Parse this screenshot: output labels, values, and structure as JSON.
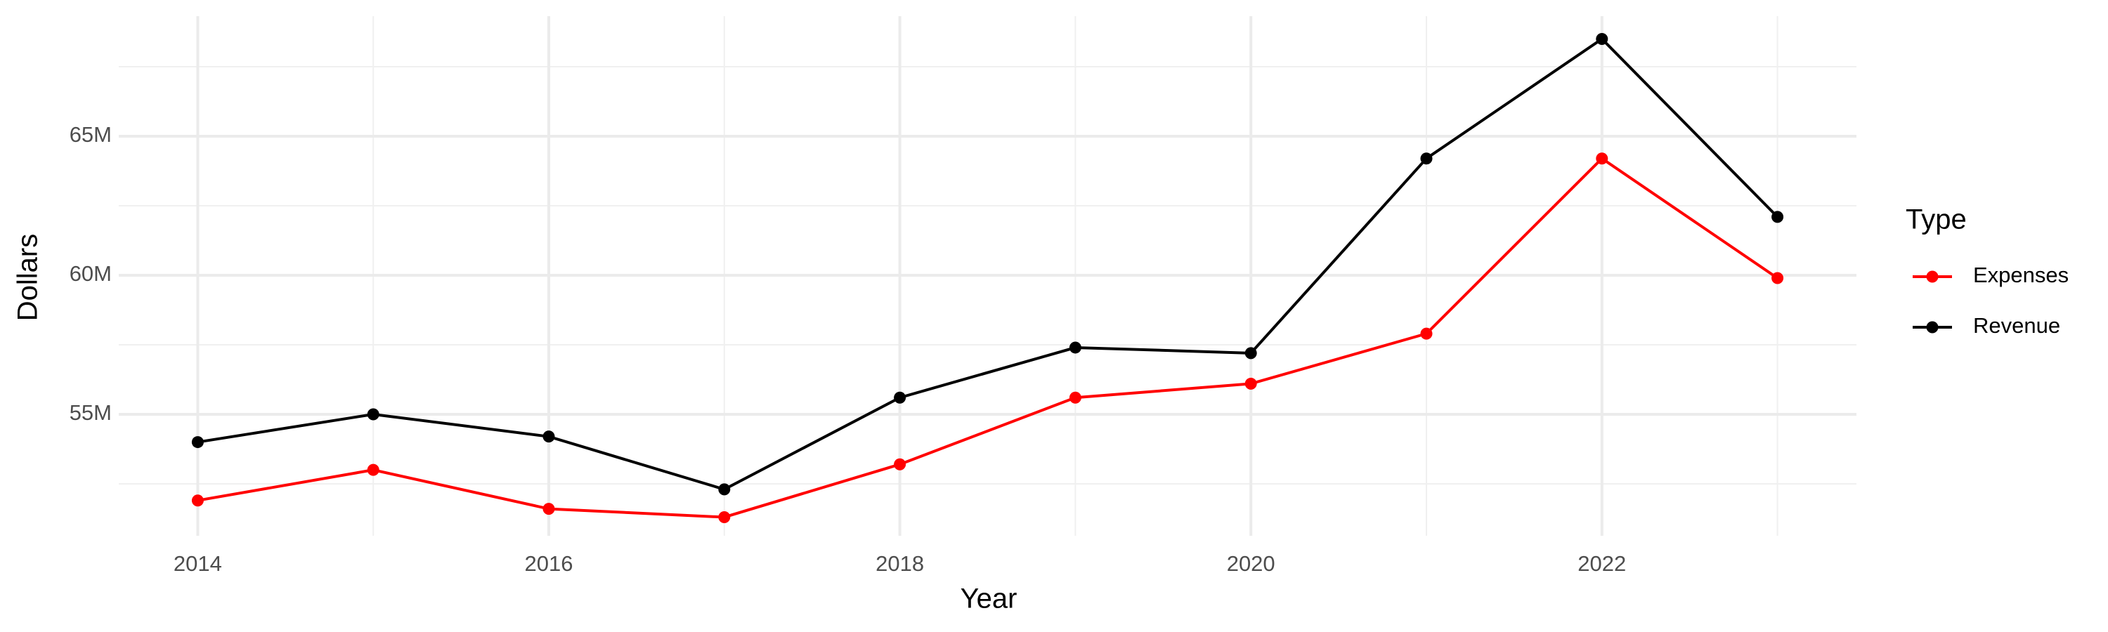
{
  "chart_data": {
    "type": "line",
    "x_label": "Year",
    "y_label": "Dollars",
    "legend_title": "Type",
    "x": [
      2014,
      2015,
      2016,
      2017,
      2018,
      2019,
      2020,
      2021,
      2022,
      2023
    ],
    "series": [
      {
        "name": "Expenses",
        "color": "#ff0000",
        "values": [
          51900000,
          53000000,
          51600000,
          51300000,
          53200000,
          55600000,
          56100000,
          57900000,
          64200000,
          59900000
        ]
      },
      {
        "name": "Revenue",
        "color": "#000000",
        "values": [
          54000000,
          55000000,
          54200000,
          52300000,
          55600000,
          57400000,
          57200000,
          64200000,
          68500000,
          62100000
        ]
      }
    ],
    "xlim": [
      2013.55,
      2023.45
    ],
    "xticks": [
      2014,
      2016,
      2018,
      2020,
      2022
    ],
    "xminor": [
      2015,
      2017,
      2019,
      2021,
      2023
    ],
    "ylim": [
      50630000,
      69320000
    ],
    "yticks": [
      {
        "value": 55000000,
        "label": "55M"
      },
      {
        "value": 60000000,
        "label": "60M"
      },
      {
        "value": 65000000,
        "label": "65M"
      }
    ],
    "yminor": [
      52500000,
      57500000,
      62500000,
      67500000
    ],
    "grid": true,
    "legend": "right"
  }
}
